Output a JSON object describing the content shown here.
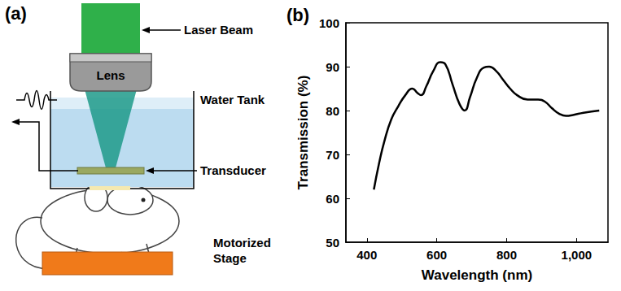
{
  "diagram": {
    "label": "(a)",
    "parts": {
      "laser": "Laser Beam",
      "lens": "Lens",
      "tank": "Water Tank",
      "transducer": "Transducer",
      "stage": "Motorized Stage"
    }
  },
  "chart_data": {
    "label": "(b)",
    "type": "line",
    "x_label": "Wavelength (nm)",
    "y_label": "Transmission (%)",
    "x": [
      420,
      435,
      450,
      470,
      490,
      510,
      530,
      545,
      555,
      570,
      590,
      610,
      625,
      645,
      665,
      680,
      695,
      715,
      735,
      750,
      770,
      790,
      810,
      830,
      860,
      890,
      910,
      930,
      950,
      970,
      990,
      1020,
      1065
    ],
    "values": [
      62,
      68,
      73,
      78,
      81,
      83.5,
      85,
      84,
      83.5,
      85.5,
      89,
      91,
      90.5,
      86,
      81.5,
      80,
      83,
      87.5,
      89.8,
      90,
      89,
      87,
      85,
      83.5,
      82.5,
      82.5,
      82,
      80.5,
      79.3,
      78.8,
      79,
      79.5,
      80
    ],
    "color": "#000000",
    "xlim": [
      340,
      1090
    ],
    "xticks": [
      400,
      600,
      800,
      1000
    ],
    "ylim": [
      50,
      100
    ],
    "yticks": [
      50,
      60,
      70,
      80,
      90,
      100
    ],
    "grid": false
  }
}
